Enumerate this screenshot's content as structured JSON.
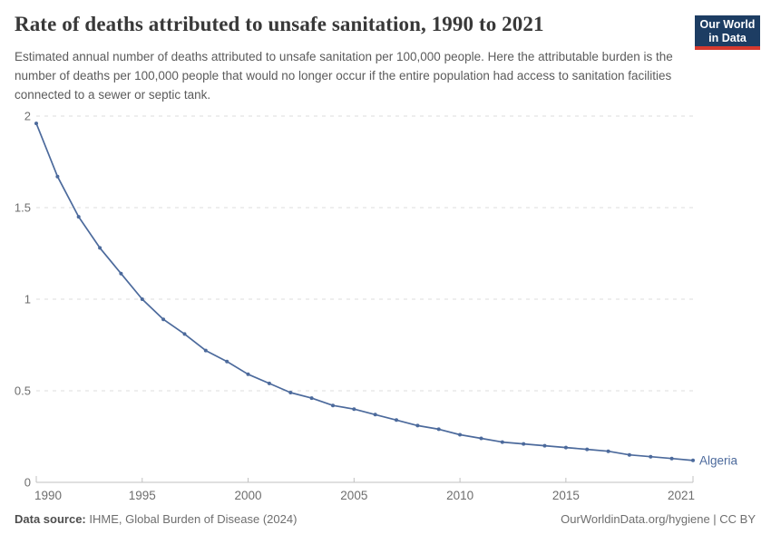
{
  "header": {
    "title": "Rate of deaths attributed to unsafe sanitation, 1990 to 2021",
    "subtitle": "Estimated annual number of deaths attributed to unsafe sanitation per 100,000 people. Here the attributable burden is the number of deaths per 100,000 people that would no longer occur if the entire population had access to sanitation facilities connected to a sewer or septic tank.",
    "logo": {
      "line1": "Our World",
      "line2": "in Data",
      "bg_color": "#1d3d63",
      "stripe_color": "#d6392e"
    }
  },
  "chart_data": {
    "type": "line",
    "title": "Rate of deaths attributed to unsafe sanitation, 1990 to 2021",
    "xlabel": "",
    "ylabel": "",
    "xlim": [
      1990,
      2021
    ],
    "ylim": [
      0,
      2
    ],
    "xticks": [
      1990,
      1995,
      2000,
      2005,
      2010,
      2015,
      2021
    ],
    "yticks": [
      0,
      0.5,
      1,
      1.5,
      2
    ],
    "grid": "horizontal-dashed",
    "legend_position": "end-of-line",
    "x": [
      1990,
      1991,
      1992,
      1993,
      1994,
      1995,
      1996,
      1997,
      1998,
      1999,
      2000,
      2001,
      2002,
      2003,
      2004,
      2005,
      2006,
      2007,
      2008,
      2009,
      2010,
      2011,
      2012,
      2013,
      2014,
      2015,
      2016,
      2017,
      2018,
      2019,
      2020,
      2021
    ],
    "series": [
      {
        "name": "Algeria",
        "color": "#4C6A9C",
        "values": [
          1.96,
          1.67,
          1.45,
          1.28,
          1.14,
          1.0,
          0.89,
          0.81,
          0.72,
          0.66,
          0.59,
          0.54,
          0.49,
          0.46,
          0.42,
          0.4,
          0.37,
          0.34,
          0.31,
          0.29,
          0.26,
          0.24,
          0.22,
          0.21,
          0.2,
          0.19,
          0.18,
          0.17,
          0.15,
          0.14,
          0.13,
          0.12
        ]
      }
    ],
    "colors": {
      "gridline": "#dcdcdc",
      "axis": "#c0c0c0",
      "tick_label": "#6e6e6e"
    }
  },
  "footer": {
    "source_label": "Data source:",
    "source_value": " IHME, Global Burden of Disease (2024)",
    "link_text": "OurWorldinData.org/hygiene | CC BY"
  }
}
